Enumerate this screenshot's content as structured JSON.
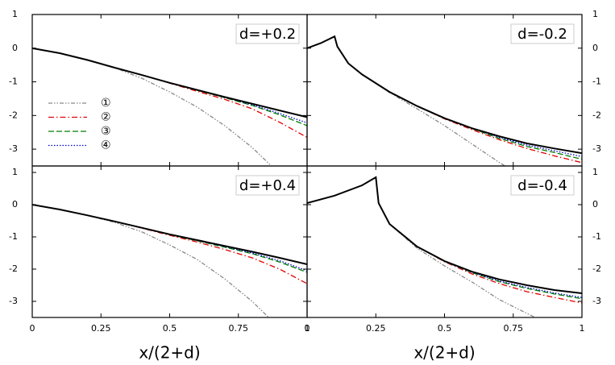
{
  "chart_data": [
    {
      "type": "line",
      "title": "d=+0.2",
      "xlim": [
        0,
        1
      ],
      "ylim": [
        -3.5,
        1
      ],
      "xticks": [
        0,
        0.25,
        0.5,
        0.75,
        1
      ],
      "yticks": [
        -3,
        -2,
        -1,
        0,
        1
      ],
      "ytick_side": "left",
      "show_xtick_labels": false,
      "legend": "left",
      "x": [
        0,
        0.1,
        0.2,
        0.3,
        0.4,
        0.5,
        0.6,
        0.7,
        0.8,
        0.9,
        1
      ],
      "series": [
        {
          "name": "①",
          "color": "#888888",
          "dash": "dashdotdot",
          "x": [
            0,
            0.1,
            0.2,
            0.3,
            0.4,
            0.5,
            0.6,
            0.7,
            0.8,
            0.87
          ],
          "values": [
            0,
            -0.15,
            -0.35,
            -0.58,
            -0.9,
            -1.3,
            -1.75,
            -2.3,
            -2.95,
            -3.5
          ]
        },
        {
          "name": "②",
          "color": "#e00000",
          "dash": "dashdot",
          "values": [
            0,
            -0.15,
            -0.35,
            -0.58,
            -0.8,
            -1.04,
            -1.28,
            -1.52,
            -1.8,
            -2.2,
            -2.65
          ]
        },
        {
          "name": "③",
          "color": "#008000",
          "dash": "dashed",
          "values": [
            0,
            -0.15,
            -0.35,
            -0.58,
            -0.8,
            -1.03,
            -1.25,
            -1.47,
            -1.7,
            -1.98,
            -2.3
          ]
        },
        {
          "name": "④",
          "color": "#0000cc",
          "dash": "dotted",
          "values": [
            0,
            -0.15,
            -0.35,
            -0.58,
            -0.8,
            -1.03,
            -1.24,
            -1.46,
            -1.68,
            -1.94,
            -2.22
          ]
        },
        {
          "color": "#000000",
          "dash": "solid",
          "values": [
            0,
            -0.15,
            -0.35,
            -0.58,
            -0.8,
            -1.03,
            -1.24,
            -1.45,
            -1.65,
            -1.85,
            -2.05
          ]
        }
      ]
    },
    {
      "type": "line",
      "title": "d=-0.2",
      "xlim": [
        0,
        1
      ],
      "ylim": [
        -3.5,
        1
      ],
      "xticks": [
        0,
        0.25,
        0.5,
        0.75,
        1
      ],
      "yticks": [
        -3,
        -2,
        -1,
        0,
        1
      ],
      "ytick_side": "right",
      "show_xtick_labels": false,
      "x": [
        0.11,
        0.15,
        0.2,
        0.3,
        0.4,
        0.5,
        0.6,
        0.7,
        0.8,
        0.9,
        1
      ],
      "series": [
        {
          "color": "#888888",
          "dash": "dashdotdot",
          "x": [
            0.11,
            0.15,
            0.2,
            0.3,
            0.4,
            0.5,
            0.6,
            0.7,
            0.72
          ],
          "values": [
            0.05,
            -0.45,
            -0.78,
            -1.32,
            -1.8,
            -2.3,
            -2.85,
            -3.4,
            -3.5
          ]
        },
        {
          "color": "#e00000",
          "dash": "dashdot",
          "values": [
            0.05,
            -0.45,
            -0.78,
            -1.3,
            -1.72,
            -2.1,
            -2.42,
            -2.72,
            -2.98,
            -3.2,
            -3.4
          ]
        },
        {
          "color": "#008000",
          "dash": "dashed",
          "values": [
            0.05,
            -0.45,
            -0.78,
            -1.3,
            -1.72,
            -2.08,
            -2.39,
            -2.68,
            -2.92,
            -3.1,
            -3.3
          ]
        },
        {
          "color": "#0000cc",
          "dash": "dotted",
          "values": [
            0.05,
            -0.45,
            -0.78,
            -1.3,
            -1.72,
            -2.08,
            -2.38,
            -2.65,
            -2.88,
            -3.05,
            -3.22
          ]
        },
        {
          "color": "#000000",
          "dash": "solid",
          "x": [
            0,
            0.05,
            0.1,
            0.11,
            0.15,
            0.2,
            0.3,
            0.4,
            0.5,
            0.6,
            0.7,
            0.8,
            0.9,
            1
          ],
          "values": [
            0,
            0.15,
            0.35,
            0.05,
            -0.45,
            -0.78,
            -1.3,
            -1.72,
            -2.08,
            -2.38,
            -2.62,
            -2.83,
            -2.98,
            -3.12
          ]
        }
      ]
    },
    {
      "type": "line",
      "title": "d=+0.4",
      "x_label": "x/(2+d)",
      "xlim": [
        0,
        1
      ],
      "ylim": [
        -3.5,
        1.2
      ],
      "xticks": [
        0,
        0.25,
        0.5,
        0.75,
        1
      ],
      "yticks": [
        -3,
        -2,
        -1,
        0,
        1
      ],
      "ytick_side": "left",
      "show_xtick_labels": true,
      "x": [
        0,
        0.1,
        0.2,
        0.3,
        0.4,
        0.5,
        0.6,
        0.7,
        0.8,
        0.9,
        1
      ],
      "series": [
        {
          "color": "#888888",
          "dash": "dashdotdot",
          "x": [
            0,
            0.1,
            0.2,
            0.3,
            0.4,
            0.5,
            0.6,
            0.7,
            0.8,
            0.86
          ],
          "values": [
            0,
            -0.15,
            -0.33,
            -0.55,
            -0.85,
            -1.25,
            -1.7,
            -2.3,
            -3.0,
            -3.5
          ]
        },
        {
          "color": "#e00000",
          "dash": "dashdot",
          "values": [
            0,
            -0.15,
            -0.33,
            -0.52,
            -0.73,
            -0.95,
            -1.16,
            -1.39,
            -1.65,
            -2.0,
            -2.45
          ]
        },
        {
          "color": "#008000",
          "dash": "dashed",
          "values": [
            0,
            -0.15,
            -0.33,
            -0.52,
            -0.72,
            -0.93,
            -1.12,
            -1.32,
            -1.52,
            -1.78,
            -2.1
          ]
        },
        {
          "color": "#0000cc",
          "dash": "dotted",
          "values": [
            0,
            -0.15,
            -0.33,
            -0.52,
            -0.72,
            -0.92,
            -1.11,
            -1.3,
            -1.5,
            -1.74,
            -2.05
          ]
        },
        {
          "color": "#000000",
          "dash": "solid",
          "values": [
            0,
            -0.15,
            -0.33,
            -0.52,
            -0.72,
            -0.92,
            -1.1,
            -1.28,
            -1.46,
            -1.65,
            -1.85
          ]
        }
      ]
    },
    {
      "type": "line",
      "title": "d=-0.4",
      "x_label": "x/(2+d)",
      "xlim": [
        0,
        1
      ],
      "ylim": [
        -3.5,
        1.2
      ],
      "xticks": [
        0,
        0.25,
        0.5,
        0.75,
        1
      ],
      "yticks": [
        -3,
        -2,
        -1,
        0,
        1
      ],
      "ytick_side": "right",
      "show_xtick_labels": true,
      "x": [
        0.26,
        0.3,
        0.4,
        0.5,
        0.6,
        0.7,
        0.8,
        0.9,
        1
      ],
      "series": [
        {
          "color": "#888888",
          "dash": "dashdotdot",
          "x": [
            0.26,
            0.3,
            0.4,
            0.5,
            0.6,
            0.7,
            0.83
          ],
          "values": [
            0.05,
            -0.6,
            -1.35,
            -1.9,
            -2.4,
            -2.95,
            -3.5
          ]
        },
        {
          "color": "#e00000",
          "dash": "dashdot",
          "values": [
            0.05,
            -0.6,
            -1.3,
            -1.77,
            -2.15,
            -2.45,
            -2.7,
            -2.88,
            -3.05
          ]
        },
        {
          "color": "#008000",
          "dash": "dashed",
          "values": [
            0.05,
            -0.6,
            -1.3,
            -1.76,
            -2.11,
            -2.39,
            -2.6,
            -2.77,
            -2.92
          ]
        },
        {
          "color": "#0000cc",
          "dash": "dotted",
          "values": [
            0.05,
            -0.6,
            -1.3,
            -1.76,
            -2.1,
            -2.37,
            -2.57,
            -2.74,
            -2.88
          ]
        },
        {
          "color": "#000000",
          "dash": "solid",
          "x": [
            0,
            0.1,
            0.2,
            0.25,
            0.26,
            0.3,
            0.4,
            0.5,
            0.6,
            0.7,
            0.8,
            0.9,
            1
          ],
          "values": [
            0.05,
            0.28,
            0.6,
            0.85,
            0.05,
            -0.6,
            -1.3,
            -1.75,
            -2.08,
            -2.32,
            -2.5,
            -2.65,
            -2.75
          ]
        }
      ]
    }
  ]
}
